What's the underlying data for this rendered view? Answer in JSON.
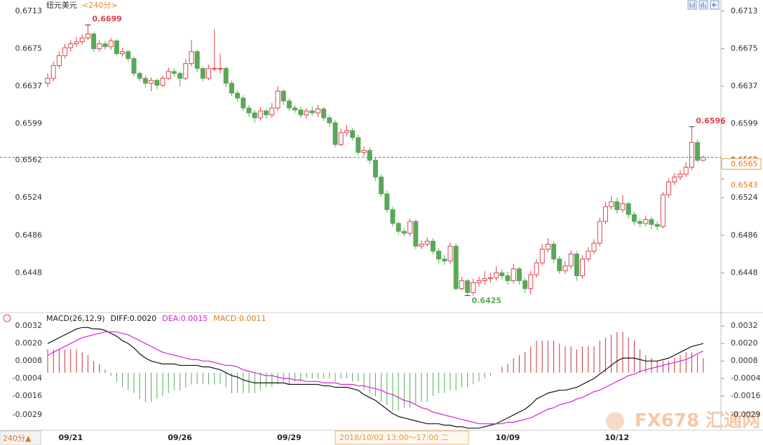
{
  "chart_data": [
    {
      "type": "candlestick",
      "title": "纽元美元",
      "subtitle": "<240分>",
      "categories": [
        null,
        null,
        null,
        null,
        "09/21",
        null,
        null,
        null,
        null,
        null,
        null,
        null,
        null,
        null,
        null,
        null,
        null,
        null,
        null,
        null,
        null,
        null,
        null,
        "09/26",
        null,
        null,
        null,
        null,
        null,
        null,
        null,
        null,
        null,
        null,
        null,
        null,
        null,
        null,
        null,
        null,
        null,
        null,
        "09/29",
        null,
        null,
        null,
        null,
        null,
        null,
        null,
        null,
        null,
        null,
        null,
        null,
        null,
        null,
        null,
        null,
        null,
        null,
        null,
        null,
        null,
        null,
        null,
        null,
        null,
        null,
        null,
        null,
        null,
        null,
        null,
        null,
        null,
        null,
        null,
        null,
        null,
        "10/09",
        null,
        null,
        null,
        null,
        null,
        null,
        null,
        null,
        null,
        null,
        null,
        null,
        null,
        null,
        null,
        null,
        null,
        null,
        "10/12",
        null,
        null,
        null,
        null,
        null,
        null,
        null,
        null,
        null,
        null,
        null,
        null,
        null,
        null,
        null
      ],
      "open": [
        0.664,
        0.6645,
        0.6658,
        0.6668,
        0.6676,
        0.668,
        0.6682,
        0.6686,
        0.669,
        0.6675,
        0.668,
        0.6677,
        0.6683,
        0.667,
        0.6672,
        0.6665,
        0.665,
        0.6645,
        0.664,
        0.6643,
        0.6638,
        0.6645,
        0.6652,
        0.665,
        0.6645,
        0.666,
        0.6672,
        0.6655,
        0.6645,
        0.6655,
        0.6655,
        0.6655,
        0.664,
        0.663,
        0.6625,
        0.6615,
        0.661,
        0.6605,
        0.6612,
        0.6608,
        0.6615,
        0.6632,
        0.6622,
        0.6615,
        0.6613,
        0.6608,
        0.6612,
        0.661,
        0.6614,
        0.6605,
        0.66,
        0.6578,
        0.659,
        0.6592,
        0.6585,
        0.657,
        0.6572,
        0.6562,
        0.6545,
        0.6528,
        0.6512,
        0.6498,
        0.649,
        0.6488,
        0.65,
        0.6475,
        0.6477,
        0.648,
        0.647,
        0.6462,
        0.646,
        0.6475,
        0.6432,
        0.644,
        0.6428,
        0.6438,
        0.644,
        0.6442,
        0.6443,
        0.6448,
        0.6445,
        0.644,
        0.6452,
        0.644,
        0.6432,
        0.6446,
        0.6458,
        0.6472,
        0.6477,
        0.6462,
        0.645,
        0.6455,
        0.6467,
        0.6445,
        0.6462,
        0.647,
        0.6478,
        0.65,
        0.6515,
        0.652,
        0.6512,
        0.6518,
        0.6507,
        0.65,
        0.6498,
        0.6502,
        0.6497,
        0.6495,
        0.6527,
        0.654,
        0.6545,
        0.6548,
        0.6555,
        0.658,
        0.6562
      ],
      "high": [
        0.665,
        0.6662,
        0.6672,
        0.668,
        0.6684,
        0.6687,
        0.669,
        0.6699,
        0.6692,
        0.6684,
        0.6683,
        0.6686,
        0.6685,
        0.6676,
        0.6674,
        0.6667,
        0.6652,
        0.6648,
        0.6646,
        0.6645,
        0.6648,
        0.6656,
        0.6655,
        0.6652,
        0.6664,
        0.6684,
        0.6674,
        0.6657,
        0.6659,
        0.6695,
        0.667,
        0.6657,
        0.6643,
        0.6633,
        0.6628,
        0.6618,
        0.6613,
        0.6616,
        0.6614,
        0.662,
        0.6637,
        0.6634,
        0.6625,
        0.6618,
        0.6616,
        0.6615,
        0.6617,
        0.6618,
        0.6616,
        0.6608,
        0.6603,
        0.6594,
        0.6598,
        0.6595,
        0.6588,
        0.6576,
        0.6575,
        0.6565,
        0.6548,
        0.6531,
        0.6515,
        0.65,
        0.6493,
        0.6503,
        0.6502,
        0.6481,
        0.6484,
        0.6483,
        0.6473,
        0.6466,
        0.6479,
        0.6478,
        0.6444,
        0.6442,
        0.6442,
        0.6444,
        0.645,
        0.6448,
        0.6455,
        0.6452,
        0.6449,
        0.6457,
        0.6454,
        0.6443,
        0.645,
        0.6462,
        0.6477,
        0.6483,
        0.648,
        0.6465,
        0.646,
        0.6471,
        0.647,
        0.6466,
        0.6474,
        0.6482,
        0.6504,
        0.652,
        0.6526,
        0.6524,
        0.6527,
        0.652,
        0.651,
        0.6503,
        0.6506,
        0.6505,
        0.65,
        0.653,
        0.6544,
        0.6549,
        0.6552,
        0.656,
        0.6596,
        0.6583,
        0.6567
      ],
      "low": [
        0.6636,
        0.6642,
        0.6655,
        0.6665,
        0.6672,
        0.6677,
        0.6679,
        0.6684,
        0.6672,
        0.6672,
        0.6674,
        0.6674,
        0.6668,
        0.6667,
        0.6662,
        0.6647,
        0.6642,
        0.6636,
        0.6632,
        0.6634,
        0.6636,
        0.6643,
        0.6647,
        0.6637,
        0.6643,
        0.6657,
        0.6651,
        0.6642,
        0.6643,
        0.6652,
        0.665,
        0.6636,
        0.6627,
        0.6621,
        0.6612,
        0.6606,
        0.66,
        0.6602,
        0.6604,
        0.6605,
        0.6612,
        0.6618,
        0.6612,
        0.661,
        0.6605,
        0.6604,
        0.6607,
        0.6606,
        0.6602,
        0.6596,
        0.6575,
        0.6576,
        0.6586,
        0.6582,
        0.6567,
        0.6566,
        0.6558,
        0.6541,
        0.6525,
        0.6509,
        0.6495,
        0.6487,
        0.6485,
        0.6485,
        0.6472,
        0.6472,
        0.6475,
        0.6467,
        0.6458,
        0.6456,
        0.6457,
        0.643,
        0.643,
        0.6425,
        0.6425,
        0.6434,
        0.6436,
        0.6438,
        0.644,
        0.6441,
        0.6436,
        0.6437,
        0.6436,
        0.6428,
        0.6426,
        0.6443,
        0.6455,
        0.6469,
        0.6458,
        0.6447,
        0.6447,
        0.6452,
        0.644,
        0.6442,
        0.6459,
        0.6467,
        0.6475,
        0.6497,
        0.6512,
        0.6508,
        0.6509,
        0.6503,
        0.6496,
        0.6494,
        0.6495,
        0.6492,
        0.6491,
        0.6493,
        0.6524,
        0.6537,
        0.6542,
        0.6545,
        0.6552,
        0.656,
        0.6561
      ],
      "close": [
        0.6645,
        0.6658,
        0.6668,
        0.6676,
        0.668,
        0.6682,
        0.6686,
        0.669,
        0.6675,
        0.668,
        0.6677,
        0.6683,
        0.667,
        0.6672,
        0.6665,
        0.665,
        0.6645,
        0.664,
        0.6643,
        0.6638,
        0.6645,
        0.6652,
        0.665,
        0.6645,
        0.666,
        0.6672,
        0.6655,
        0.6645,
        0.6655,
        0.6655,
        0.6655,
        0.664,
        0.663,
        0.6625,
        0.6615,
        0.661,
        0.6605,
        0.6612,
        0.6608,
        0.6615,
        0.6632,
        0.6622,
        0.6615,
        0.6613,
        0.6608,
        0.6612,
        0.661,
        0.6614,
        0.6605,
        0.66,
        0.6578,
        0.659,
        0.6592,
        0.6585,
        0.657,
        0.6572,
        0.6562,
        0.6545,
        0.6528,
        0.6512,
        0.6498,
        0.649,
        0.6488,
        0.65,
        0.6475,
        0.6477,
        0.648,
        0.647,
        0.6462,
        0.646,
        0.6475,
        0.6432,
        0.644,
        0.6428,
        0.6438,
        0.644,
        0.6442,
        0.6443,
        0.6448,
        0.6445,
        0.644,
        0.6452,
        0.644,
        0.6432,
        0.6446,
        0.6458,
        0.6472,
        0.6477,
        0.6462,
        0.645,
        0.6455,
        0.6467,
        0.6445,
        0.6462,
        0.647,
        0.6478,
        0.65,
        0.6515,
        0.652,
        0.6512,
        0.6518,
        0.6507,
        0.65,
        0.6498,
        0.6502,
        0.6497,
        0.6495,
        0.6527,
        0.654,
        0.6545,
        0.6548,
        0.6555,
        0.658,
        0.6562,
        0.6565
      ],
      "up_color": "#d9434b",
      "down_color": "#5aa857",
      "ylim": [
        0.6412,
        0.6713
      ],
      "yticks": [
        0.6448,
        0.6486,
        0.6524,
        0.6562,
        0.6599,
        0.6637,
        0.6675,
        0.6713
      ],
      "last_price": 0.6565,
      "ref_price": 0.6543
    },
    {
      "type": "macd",
      "header": [
        "MACD(26,12,9)",
        "DIFF:0.0020",
        "DEA:0.0015",
        "MACD:0.0011"
      ],
      "series": [
        {
          "color": "#111111",
          "values": [
            0.002,
            0.0022,
            0.0024,
            0.0026,
            0.0028,
            0.003,
            0.0031,
            0.0031,
            0.003,
            0.003,
            0.0029,
            0.0027,
            0.0025,
            0.0022,
            0.002,
            0.0017,
            0.0013,
            0.001,
            0.0008,
            0.0007,
            0.0006,
            0.0006,
            0.0006,
            0.0005,
            0.0005,
            0.0005,
            0.0005,
            0.0004,
            0.0004,
            0.0003,
            0.0002,
            0,
            -0.0002,
            -0.0003,
            -0.0005,
            -0.0006,
            -0.0007,
            -0.0007,
            -0.0007,
            -0.0007,
            -0.0007,
            -0.0007,
            -0.0008,
            -0.0008,
            -0.0008,
            -0.0008,
            -0.0008,
            -0.0008,
            -0.0009,
            -0.0009,
            -0.001,
            -0.001,
            -0.001,
            -0.0011,
            -0.0012,
            -0.0015,
            -0.0017,
            -0.0019,
            -0.0022,
            -0.0025,
            -0.0028,
            -0.003,
            -0.0031,
            -0.0032,
            -0.0033,
            -0.0034,
            -0.0035,
            -0.0035,
            -0.0035,
            -0.0036,
            -0.0036,
            -0.0037,
            -0.0037,
            -0.0038,
            -0.0038,
            -0.0038,
            -0.0037,
            -0.0036,
            -0.0035,
            -0.0033,
            -0.0031,
            -0.0029,
            -0.0027,
            -0.0025,
            -0.0022,
            -0.0018,
            -0.0016,
            -0.0014,
            -0.0013,
            -0.0012,
            -0.0012,
            -0.0011,
            -0.001,
            -0.0008,
            -0.0006,
            -0.0004,
            -0.0001,
            0.0002,
            0.0005,
            0.0008,
            0.001,
            0.001,
            0.001,
            0.0009,
            0.0008,
            0.0008,
            0.0008,
            0.0009,
            0.001,
            0.0012,
            0.0014,
            0.0016,
            0.0018,
            0.0019,
            0.002
          ]
        },
        {
          "color": "#d91ed9",
          "values": [
            0.0012,
            0.0014,
            0.0016,
            0.0018,
            0.002,
            0.0022,
            0.0024,
            0.0025,
            0.0026,
            0.0027,
            0.0028,
            0.0028,
            0.0028,
            0.0027,
            0.0026,
            0.0024,
            0.0022,
            0.002,
            0.0018,
            0.0016,
            0.0014,
            0.0013,
            0.0012,
            0.0011,
            0.001,
            0.0009,
            0.0009,
            0.0008,
            0.0008,
            0.0007,
            0.0006,
            0.0005,
            0.0005,
            0.0004,
            0.0002,
            0.0001,
            0,
            -0.0001,
            -0.0002,
            -0.0002,
            -0.0003,
            -0.0004,
            -0.0004,
            -0.0005,
            -0.0005,
            -0.0006,
            -0.0006,
            -0.0006,
            -0.0007,
            -0.0007,
            -0.0007,
            -0.0008,
            -0.0008,
            -0.0008,
            -0.0009,
            -0.0009,
            -0.001,
            -0.0011,
            -0.0012,
            -0.0014,
            -0.0015,
            -0.0017,
            -0.0019,
            -0.002,
            -0.0022,
            -0.0024,
            -0.0025,
            -0.0027,
            -0.0028,
            -0.0029,
            -0.003,
            -0.0031,
            -0.0032,
            -0.0033,
            -0.0034,
            -0.0035,
            -0.0035,
            -0.0035,
            -0.0035,
            -0.0035,
            -0.0034,
            -0.0034,
            -0.0033,
            -0.0032,
            -0.0031,
            -0.0029,
            -0.0027,
            -0.0025,
            -0.0024,
            -0.0022,
            -0.0021,
            -0.002,
            -0.0018,
            -0.0017,
            -0.0015,
            -0.0013,
            -0.0012,
            -0.001,
            -0.0008,
            -0.0006,
            -0.0004,
            -0.0002,
            -0.0001,
            0.0001,
            0.0002,
            0.0003,
            0.0004,
            0.0005,
            0.0006,
            0.0007,
            0.0008,
            0.0009,
            0.0011,
            0.0013,
            0.0015
          ]
        },
        {
          "up_color": "#c9323a",
          "down_color": "#5aa857",
          "values": [
            0.0016,
            0.0016,
            0.0016,
            0.0016,
            0.0016,
            0.0016,
            0.0014,
            0.0012,
            0.0008,
            0.0006,
            0.0002,
            -0.0002,
            -0.0006,
            -0.001,
            -0.0012,
            -0.0014,
            -0.0018,
            -0.002,
            -0.002,
            -0.0018,
            -0.0016,
            -0.0014,
            -0.0012,
            -0.0012,
            -0.001,
            -0.0008,
            -0.0008,
            -0.0008,
            -0.0008,
            -0.0008,
            -0.0008,
            -0.001,
            -0.0014,
            -0.0014,
            -0.0014,
            -0.0014,
            -0.0014,
            -0.0012,
            -0.001,
            -0.001,
            -0.0008,
            -0.0006,
            -0.0008,
            -0.0006,
            -0.0006,
            -0.0004,
            -0.0004,
            -0.0004,
            -0.0004,
            -0.0004,
            -0.0006,
            -0.0004,
            -0.0004,
            -0.0006,
            -0.0006,
            -0.0012,
            -0.0014,
            -0.0016,
            -0.002,
            -0.0022,
            -0.0026,
            -0.0026,
            -0.0024,
            -0.0024,
            -0.0022,
            -0.002,
            -0.002,
            -0.0016,
            -0.0014,
            -0.0014,
            -0.0012,
            -0.0012,
            -0.001,
            -0.001,
            -0.0008,
            -0.0006,
            -0.0004,
            -0.0002,
            0,
            0.0004,
            0.0006,
            0.001,
            0.0012,
            0.0014,
            0.0018,
            0.0022,
            0.0022,
            0.0022,
            0.0022,
            0.002,
            0.0018,
            0.0018,
            0.0016,
            0.0018,
            0.0018,
            0.0018,
            0.0022,
            0.0024,
            0.0026,
            0.0028,
            0.0028,
            0.0024,
            0.0022,
            0.0016,
            0.0012,
            0.001,
            0.0008,
            0.0008,
            0.0008,
            0.001,
            0.0012,
            0.0014,
            0.0014,
            0.0012,
            0.001
          ]
        }
      ],
      "ylim": [
        -0.0039,
        0.0035
      ],
      "yticks": [
        0.0032,
        {
          "value": 0.002,
          "label": "0.0020"
        },
        0.0008,
        -0.0004,
        -0.0016,
        -0.0029
      ]
    }
  ],
  "page": {
    "period_button": "240分▲",
    "cursor_time": "2018/10/02 13:00～17:00 二",
    "watermark": "FX678 汇通网"
  }
}
